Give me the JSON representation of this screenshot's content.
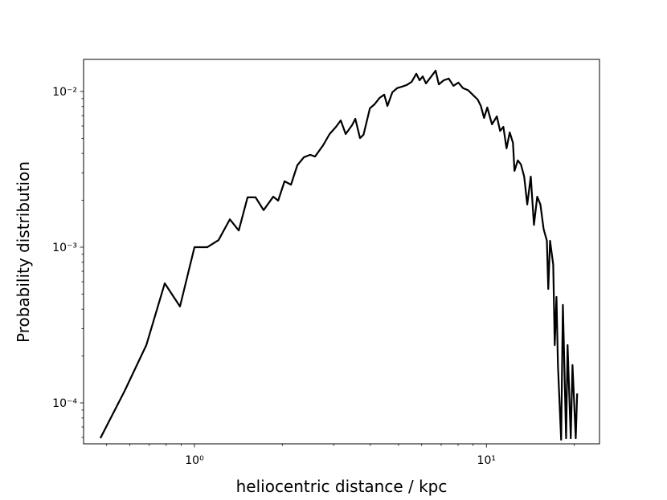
{
  "chart_data": {
    "type": "line",
    "xlabel": "heliocentric distance / kpc",
    "ylabel": "Probability distribution",
    "xscale": "log",
    "yscale": "log",
    "color": "#000000",
    "xlim": [
      0.417,
      24.4
    ],
    "ylim": [
      5.46e-05,
      0.01607
    ],
    "xticks": [
      {
        "value": 1,
        "label": "10⁰"
      },
      {
        "value": 10,
        "label": "10¹"
      }
    ],
    "yticks": [
      {
        "value": 0.0001,
        "label": "10⁻⁴"
      },
      {
        "value": 0.001,
        "label": "10⁻³"
      },
      {
        "value": 0.01,
        "label": "10⁻²"
      }
    ],
    "x": [
      0.476,
      0.576,
      0.684,
      0.791,
      0.892,
      1.0,
      1.107,
      1.209,
      1.322,
      1.418,
      1.52,
      1.619,
      1.725,
      1.862,
      1.935,
      2.035,
      2.141,
      2.251,
      2.37,
      2.492,
      2.588,
      2.76,
      2.903,
      3.054,
      3.17,
      3.296,
      3.467,
      3.556,
      3.69,
      3.793,
      3.99,
      4.14,
      4.305,
      4.467,
      4.581,
      4.764,
      4.943,
      5.14,
      5.333,
      5.546,
      5.754,
      5.902,
      6.053,
      6.209,
      6.457,
      6.699,
      6.871,
      7.145,
      7.43,
      7.709,
      8.017,
      8.318,
      8.65,
      8.974,
      9.333,
      9.572,
      9.817,
      10.07,
      10.45,
      10.86,
      11.14,
      11.43,
      11.72,
      12.02,
      12.33,
      12.48,
      12.81,
      13.13,
      13.47,
      13.8,
      14.19,
      14.55,
      14.93,
      15.31,
      15.7,
      16.11,
      16.29,
      16.52,
      16.94,
      17.14,
      17.38,
      17.58,
      18.03,
      18.28,
      18.75,
      18.97,
      19.45,
      19.72,
      20.23,
      20.46
    ],
    "values": [
      5.93e-05,
      0.000119,
      0.000235,
      0.000586,
      0.000416,
      0.001,
      0.001,
      0.00111,
      0.00151,
      0.00128,
      0.00209,
      0.00209,
      0.00173,
      0.00211,
      0.00199,
      0.00265,
      0.00252,
      0.00336,
      0.00378,
      0.00392,
      0.00382,
      0.00452,
      0.00533,
      0.00593,
      0.00652,
      0.00533,
      0.00608,
      0.00668,
      0.00502,
      0.00527,
      0.0078,
      0.00828,
      0.00909,
      0.00954,
      0.00807,
      0.00989,
      0.0105,
      0.01074,
      0.011,
      0.01153,
      0.013,
      0.0118,
      0.0125,
      0.01127,
      0.0124,
      0.0136,
      0.0111,
      0.0118,
      0.0121,
      0.01087,
      0.0114,
      0.0105,
      0.0102,
      0.00954,
      0.00888,
      0.00807,
      0.00676,
      0.00789,
      0.00615,
      0.00692,
      0.00558,
      0.00593,
      0.00431,
      0.00546,
      0.00468,
      0.00309,
      0.00361,
      0.0034,
      0.00284,
      0.00188,
      0.00284,
      0.00139,
      0.00211,
      0.00188,
      0.00131,
      0.0011,
      0.000539,
      0.0011,
      0.000771,
      0.000235,
      0.000479,
      0.000175,
      5.8e-05,
      0.000426,
      5.93e-05,
      0.000235,
      5.93e-05,
      0.000175,
      5.93e-05,
      0.000115
    ]
  }
}
